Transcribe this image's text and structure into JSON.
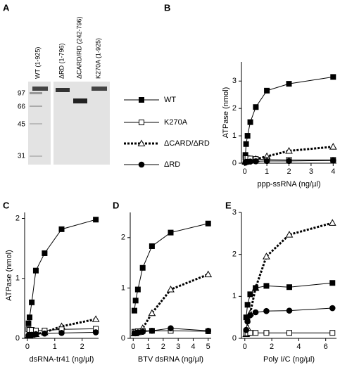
{
  "gel": {
    "panel_label": "A",
    "lanes": [
      "WT (1-925)",
      "ΔRD (1-796)",
      "ΔCARD/RD (242-796)",
      "K270A (1-925)"
    ],
    "markers": [
      97,
      66,
      45,
      31
    ]
  },
  "legend": [
    {
      "name": "WT",
      "color": "#000000",
      "marker": "square",
      "filled": true,
      "dashed": false
    },
    {
      "name": "K270A",
      "color": "#000000",
      "marker": "square",
      "filled": false,
      "dashed": false
    },
    {
      "name": "ΔCARD/ΔRD",
      "color": "#000000",
      "marker": "triangle",
      "filled": false,
      "dashed": true
    },
    {
      "name": "ΔRD",
      "color": "#000000",
      "marker": "circle",
      "filled": true,
      "dashed": false
    }
  ],
  "chart_data": [
    {
      "type": "line",
      "panel_label": "B",
      "xlabel": "ppp-ssRNA (ng/µl)",
      "ylabel": "ATPase (nmol)",
      "x": [
        0.03,
        0.06,
        0.125,
        0.25,
        0.5,
        1,
        2,
        4
      ],
      "series": [
        {
          "values": [
            0.3,
            0.7,
            1.0,
            1.5,
            2.05,
            2.65,
            2.9,
            3.15
          ]
        },
        {
          "values": [
            0.2,
            0.18,
            0.18,
            0.17,
            0.15,
            0.13,
            0.12,
            0.12
          ]
        },
        {
          "values": [
            0.05,
            0.08,
            0.1,
            0.12,
            0.15,
            0.25,
            0.45,
            0.6
          ]
        },
        {
          "values": [
            0.02,
            0.05,
            0.05,
            0.06,
            0.07,
            0.08,
            0.08,
            0.1
          ]
        }
      ],
      "xlim": [
        -0.15,
        4.15
      ],
      "xticks": [
        0,
        1,
        2,
        3,
        4
      ],
      "ylim": [
        0,
        3.7
      ],
      "yticks": [
        0,
        1,
        2,
        3
      ]
    },
    {
      "type": "line",
      "panel_label": "C",
      "xlabel": "dsRNA-tr41 (ng/µl)",
      "ylabel": "ATPase (nmol)",
      "x": [
        0.04,
        0.08,
        0.16,
        0.31,
        0.63,
        1.25,
        2.5
      ],
      "series": [
        {
          "values": [
            0.25,
            0.35,
            0.6,
            1.13,
            1.42,
            1.82,
            1.98
          ]
        },
        {
          "values": [
            0.15,
            0.14,
            0.14,
            0.13,
            0.13,
            0.15,
            0.16
          ]
        },
        {
          "values": [
            0.05,
            0.05,
            0.06,
            0.07,
            0.1,
            0.2,
            0.32
          ]
        },
        {
          "values": [
            0.05,
            0.06,
            0.06,
            0.07,
            0.08,
            0.09,
            0.1
          ]
        }
      ],
      "xlim": [
        -0.1,
        2.6
      ],
      "xticks": [
        0,
        1,
        2
      ],
      "ylim": [
        0,
        2.1
      ],
      "yticks": [
        0,
        1,
        2
      ]
    },
    {
      "type": "line",
      "panel_label": "D",
      "xlabel": "BTV dsRNA (ng/µl)",
      "x": [
        0.08,
        0.16,
        0.31,
        0.63,
        1.25,
        2.5,
        5
      ],
      "series": [
        {
          "values": [
            0.55,
            0.75,
            0.97,
            1.4,
            1.83,
            2.1,
            2.28
          ]
        },
        {
          "values": [
            0.13,
            0.13,
            0.14,
            0.15,
            0.15,
            0.15,
            0.14
          ]
        },
        {
          "values": [
            0.1,
            0.1,
            0.12,
            0.2,
            0.5,
            0.97,
            1.27
          ]
        },
        {
          "values": [
            0.1,
            0.1,
            0.12,
            0.13,
            0.15,
            0.2,
            0.15
          ]
        }
      ],
      "xlim": [
        -0.2,
        5.2
      ],
      "xticks": [
        0,
        1,
        2,
        3,
        4,
        5
      ],
      "ylim": [
        0,
        2.5
      ],
      "yticks": [
        0,
        1,
        2
      ]
    },
    {
      "type": "line",
      "panel_label": "E",
      "xlabel": "Poly I/C (ng/µl)",
      "x": [
        0.1,
        0.2,
        0.4,
        0.8,
        1.6,
        3.3,
        6.5
      ],
      "series": [
        {
          "values": [
            0.5,
            0.8,
            1.05,
            1.2,
            1.25,
            1.22,
            1.32
          ]
        },
        {
          "values": [
            0.12,
            0.12,
            0.13,
            0.13,
            0.13,
            0.13,
            0.13
          ]
        },
        {
          "values": [
            0.1,
            0.25,
            0.6,
            1.2,
            1.95,
            2.47,
            2.75
          ]
        },
        {
          "values": [
            0.2,
            0.4,
            0.55,
            0.62,
            0.65,
            0.66,
            0.72
          ]
        }
      ],
      "xlim": [
        -0.25,
        6.8
      ],
      "xticks": [
        0,
        2,
        4,
        6
      ],
      "ylim": [
        0,
        3
      ],
      "yticks": [
        0,
        1,
        2,
        3
      ]
    }
  ]
}
